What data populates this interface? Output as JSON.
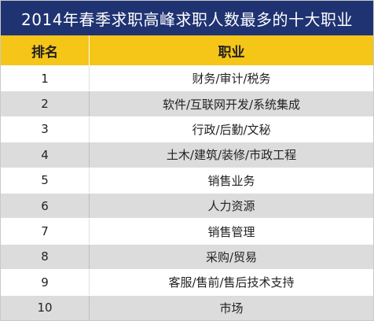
{
  "title": "2014年春季求职高峰求职人数最多的十大职业",
  "header": {
    "rank_label": "排名",
    "job_label": "职业"
  },
  "rows": [
    {
      "rank": "1",
      "job": "财务/审计/税务"
    },
    {
      "rank": "2",
      "job": "软件/互联网开发/系统集成"
    },
    {
      "rank": "3",
      "job": "行政/后勤/文秘"
    },
    {
      "rank": "4",
      "job": "土木/建筑/装修/市政工程"
    },
    {
      "rank": "5",
      "job": "销售业务"
    },
    {
      "rank": "6",
      "job": "人力资源"
    },
    {
      "rank": "7",
      "job": "销售管理"
    },
    {
      "rank": "8",
      "job": "采购/贸易"
    },
    {
      "rank": "9",
      "job": "客服/售前/售后技术支持"
    },
    {
      "rank": "10",
      "job": "市场"
    }
  ],
  "colors": {
    "title_bg": "#1f3372",
    "header_bg": "#f5c518",
    "stripe": "#dcdcdc"
  }
}
